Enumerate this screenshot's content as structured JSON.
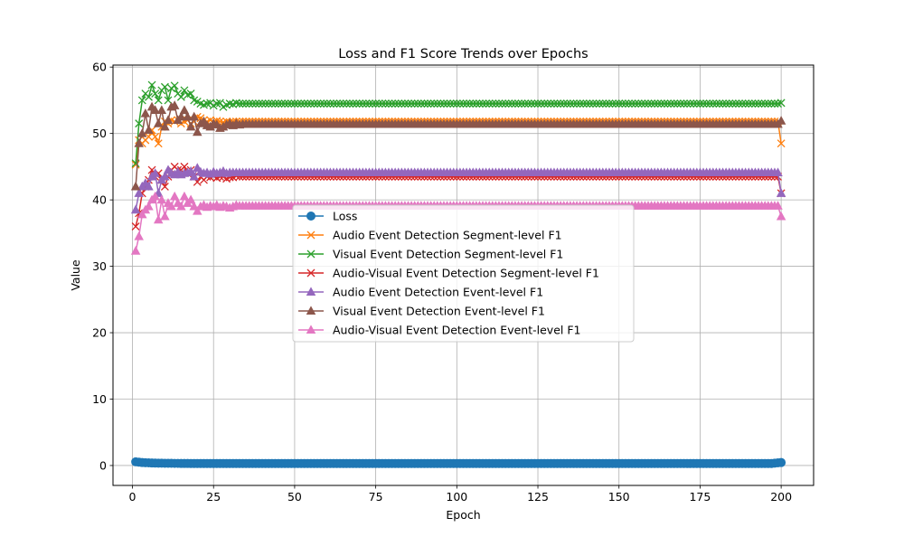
{
  "chart_data": {
    "type": "line",
    "title": "Loss and F1 Score Trends over Epochs",
    "xlabel": "Epoch",
    "ylabel": "Value",
    "xlim": [
      -6,
      210
    ],
    "ylim": [
      -3.0,
      60.3
    ],
    "x_ticks": [
      0,
      25,
      50,
      75,
      100,
      125,
      150,
      175,
      200
    ],
    "y_ticks": [
      0,
      10,
      20,
      30,
      40,
      50,
      60
    ],
    "grid": true,
    "legend_position": "center",
    "x_start": 1,
    "x_end": 200,
    "series": [
      {
        "name": "Loss",
        "color": "#1f77b4",
        "marker": "circle",
        "values": [
          0.55,
          0.5,
          0.45,
          0.42,
          0.4,
          0.38,
          0.37,
          0.36,
          0.35,
          0.34,
          0.33,
          0.33,
          0.32,
          0.32,
          0.31,
          0.31,
          0.31,
          0.3,
          0.3,
          0.3
        ],
        "plateau": 0.3,
        "end_values": [
          0.35,
          0.4,
          0.45
        ]
      },
      {
        "name": "Audio Event Detection Segment-level F1",
        "color": "#ff7f0e",
        "marker": "x",
        "values": [
          45.3,
          49.0,
          48.5,
          49.0,
          49.5,
          50.5,
          49.5,
          48.5,
          51.0,
          51.8,
          51.5,
          52.0,
          51.8,
          52.0,
          51.5,
          51.8,
          52.0,
          51.5,
          51.8,
          52.5,
          52.3,
          52.0,
          51.8,
          52.0,
          51.7,
          51.9,
          51.8,
          51.7,
          51.8,
          51.7
        ],
        "plateau": 51.8,
        "end_values": [
          48.5
        ]
      },
      {
        "name": "Visual Event Detection Segment-level F1",
        "color": "#2ca02c",
        "marker": "x",
        "values": [
          45.5,
          51.5,
          55.0,
          56.0,
          55.5,
          57.3,
          56.0,
          55.0,
          56.5,
          57.0,
          55.0,
          56.8,
          57.2,
          56.0,
          55.5,
          56.5,
          55.8,
          56.0,
          55.0,
          54.8,
          54.5,
          54.3,
          54.5,
          54.6,
          54.2,
          54.5,
          54.6,
          54.0,
          54.3,
          54.5,
          54.4,
          54.6,
          54.5
        ],
        "plateau": 54.5,
        "end_values": [
          54.6
        ]
      },
      {
        "name": "Audio-Visual Event Detection Segment-level F1",
        "color": "#d62728",
        "marker": "x",
        "values": [
          36.0,
          38.0,
          41.0,
          42.0,
          43.0,
          44.5,
          43.5,
          44.0,
          43.0,
          42.0,
          43.5,
          44.5,
          45.0,
          44.5,
          44.5,
          45.0,
          44.0,
          44.5,
          43.5,
          42.7,
          43.5,
          43.0,
          43.5,
          43.4,
          43.6,
          43.3,
          43.5,
          43.5,
          43.2,
          43.4,
          43.4,
          43.6,
          43.5
        ],
        "plateau": 43.5,
        "end_values": [
          41.0
        ]
      },
      {
        "name": "Audio Event Detection Event-level F1",
        "color": "#9467bd",
        "marker": "triangle",
        "values": [
          38.5,
          41.0,
          42.0,
          42.5,
          42.0,
          43.5,
          44.0,
          41.0,
          43.0,
          43.5,
          44.5,
          44.0,
          43.8,
          44.2,
          43.8,
          44.0,
          44.1,
          44.3,
          43.5,
          44.8,
          44.2,
          44.0,
          44.1,
          43.9,
          44.2,
          44.0,
          44.1,
          44.3,
          44.0,
          44.1
        ],
        "plateau": 44.1,
        "end_values": [
          41.0
        ]
      },
      {
        "name": "Visual Event Detection Event-level F1",
        "color": "#8c564b",
        "marker": "triangle",
        "values": [
          42.0,
          48.5,
          50.0,
          53.0,
          50.5,
          54.0,
          53.5,
          51.5,
          53.5,
          51.0,
          52.0,
          54.0,
          54.2,
          52.0,
          52.5,
          53.5,
          52.5,
          51.0,
          52.5,
          50.2,
          51.5,
          51.8,
          51.2,
          51.0,
          51.5,
          51.3,
          50.8,
          51.0,
          51.3,
          51.5,
          51.2,
          51.5,
          51.3
        ],
        "plateau": 51.4,
        "end_values": [
          51.9
        ]
      },
      {
        "name": "Audio-Visual Event Detection Event-level F1",
        "color": "#e377c2",
        "marker": "triangle",
        "values": [
          32.3,
          34.5,
          37.8,
          38.5,
          39.0,
          40.0,
          40.5,
          37.0,
          40.0,
          37.5,
          39.5,
          39.0,
          40.5,
          39.5,
          39.0,
          40.5,
          39.5,
          40.0,
          39.0,
          38.3,
          39.0,
          39.2,
          38.9,
          39.1,
          39.0,
          39.2,
          38.9,
          39.1,
          39.0,
          38.8,
          39.0,
          39.2,
          39.1
        ],
        "plateau": 39.1,
        "end_values": [
          37.5
        ]
      }
    ]
  }
}
